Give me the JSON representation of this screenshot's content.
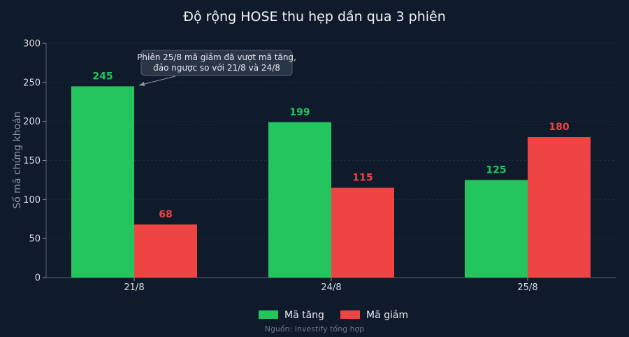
{
  "chart_data": {
    "type": "bar",
    "title": "Độ rộng HOSE thu hẹp dần qua 3 phiên",
    "xlabel": "",
    "ylabel": "Số mã chứng khoán",
    "categories": [
      "21/8",
      "24/8",
      "25/8"
    ],
    "series": [
      {
        "name": "Mã tăng",
        "values": [
          245,
          199,
          125
        ],
        "color": "#22c55e"
      },
      {
        "name": "Mã giảm",
        "values": [
          68,
          115,
          180
        ],
        "color": "#ef4444"
      }
    ],
    "ylim": [
      0,
      300
    ],
    "yticks": [
      0,
      50,
      100,
      150,
      200,
      250,
      300
    ],
    "grid": true,
    "legend": "bottom-center",
    "annotation": {
      "lines": [
        "Phiên 25/8 mã giảm đã vượt mã tăng,",
        "đảo ngược so với 21/8 và 24/8"
      ],
      "target_category": "21/8",
      "target_series": "Mã tăng"
    },
    "source": "Nguồn: Investify tổng hợp"
  }
}
